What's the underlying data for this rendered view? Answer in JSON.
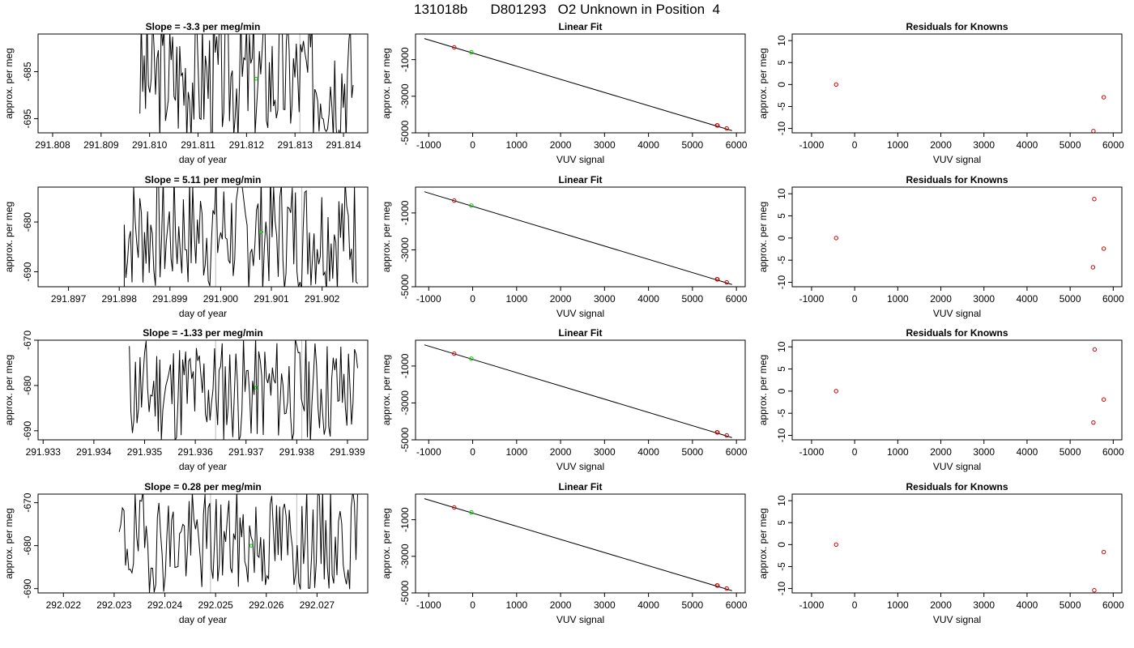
{
  "figure": {
    "title": "131018b      D801293   O2 Unknown in Position  4"
  },
  "colors": {
    "line": "#000000",
    "marker_red": "#cc0000",
    "marker_green": "#00cc00",
    "vline": "#bbbbbb"
  },
  "chart_data": [
    {
      "id": "r0_ts",
      "type": "line",
      "title": "Slope =  -3.3  per meg/min",
      "xlabel": "day of year",
      "ylabel": "approx. per meg",
      "xlim": [
        291.8077,
        291.8145
      ],
      "ylim": [
        -698,
        -677
      ],
      "xticks": [
        291.808,
        291.809,
        291.81,
        291.811,
        291.812,
        291.813,
        291.814
      ],
      "xtick_labels": [
        "291.808",
        "291.809",
        "291.810",
        "291.811",
        "291.812",
        "291.813",
        "291.814"
      ],
      "yticks": [
        -685,
        -695
      ],
      "ytick_labels": [
        "-685",
        "-695"
      ],
      "x_start": 291.8098,
      "x_end": 291.8142,
      "center": -686,
      "amp": 14,
      "seed": 3,
      "vlines": [
        291.8113,
        291.8131
      ],
      "point": {
        "x": 291.8122,
        "y": -686.5
      }
    },
    {
      "id": "r0_fit",
      "type": "scatter",
      "title": "Linear Fit",
      "xlabel": "VUV signal",
      "ylabel": "approx. per meg",
      "xlim": [
        -1300,
        6200
      ],
      "ylim": [
        -5000,
        400
      ],
      "xticks": [
        -1000,
        0,
        1000,
        2000,
        3000,
        4000,
        5000,
        6000
      ],
      "xtick_labels": [
        "-1000",
        "0",
        "1000",
        "2000",
        "3000",
        "4000",
        "5000",
        "6000"
      ],
      "yticks": [
        -1000,
        -3000,
        -5000
      ],
      "ytick_labels": [
        "-1000",
        "-3000",
        "-5000"
      ],
      "line": {
        "x": [
          -1100,
          5900
        ],
        "y": [
          150,
          -4880
        ]
      },
      "points": [
        {
          "x": -420,
          "y": -330,
          "color": "red"
        },
        {
          "x": 5560,
          "y": -4590,
          "color": "red"
        },
        {
          "x": 5570,
          "y": -4600,
          "color": "red"
        },
        {
          "x": 5780,
          "y": -4760,
          "color": "red"
        },
        {
          "x": -30,
          "y": -600,
          "color": "green"
        }
      ]
    },
    {
      "id": "r0_res",
      "type": "scatter",
      "title": "Residuals for Knowns",
      "xlabel": "VUV signal",
      "ylabel": "approx. per meg",
      "xlim": [
        -1450,
        6200
      ],
      "ylim": [
        -11,
        11.5
      ],
      "xticks": [
        -1000,
        0,
        1000,
        2000,
        3000,
        4000,
        5000,
        6000
      ],
      "xtick_labels": [
        "-1000",
        "0",
        "1000",
        "2000",
        "3000",
        "4000",
        "5000",
        "6000"
      ],
      "yticks": [
        10,
        5,
        0,
        -5,
        -10
      ],
      "ytick_labels": [
        "10",
        "5",
        "0",
        "-5",
        "-10"
      ],
      "points": [
        {
          "x": -430,
          "y": 0,
          "color": "red"
        },
        {
          "x": 5780,
          "y": -2.9,
          "color": "red"
        },
        {
          "x": 5540,
          "y": -10.6,
          "color": "red"
        }
      ]
    },
    {
      "id": "r1_ts",
      "type": "line",
      "title": "Slope =  5.11  per meg/min",
      "xlabel": "day of year",
      "ylabel": "approx. per meg",
      "xlim": [
        291.8964,
        291.9029
      ],
      "ylim": [
        -693,
        -673
      ],
      "xticks": [
        291.897,
        291.898,
        291.899,
        291.9,
        291.901,
        291.902
      ],
      "xtick_labels": [
        "291.897",
        "291.898",
        "291.899",
        "291.900",
        "291.901",
        "291.902"
      ],
      "yticks": [
        -680,
        -690
      ],
      "ytick_labels": [
        "-680",
        "-690"
      ],
      "x_start": 291.8981,
      "x_end": 291.9027,
      "center": -682,
      "amp": 12,
      "seed": 7,
      "flat_start": 291.8964,
      "flat_y": -693,
      "vlines": [
        291.8999,
        291.9016
      ],
      "point": {
        "x": 291.9008,
        "y": -682
      }
    },
    {
      "id": "r1_fit",
      "type": "scatter",
      "title": "Linear Fit",
      "xlabel": "VUV signal",
      "ylabel": "approx. per meg",
      "xlim": [
        -1300,
        6200
      ],
      "ylim": [
        -5000,
        400
      ],
      "xticks": [
        -1000,
        0,
        1000,
        2000,
        3000,
        4000,
        5000,
        6000
      ],
      "xtick_labels": [
        "-1000",
        "0",
        "1000",
        "2000",
        "3000",
        "4000",
        "5000",
        "6000"
      ],
      "yticks": [
        -1000,
        -3000,
        -5000
      ],
      "ytick_labels": [
        "-1000",
        "-3000",
        "-5000"
      ],
      "line": {
        "x": [
          -1100,
          5900
        ],
        "y": [
          150,
          -4880
        ]
      },
      "points": [
        {
          "x": -420,
          "y": -330,
          "color": "red"
        },
        {
          "x": 5560,
          "y": -4590,
          "color": "red"
        },
        {
          "x": 5570,
          "y": -4600,
          "color": "red"
        },
        {
          "x": 5780,
          "y": -4760,
          "color": "red"
        },
        {
          "x": -30,
          "y": -600,
          "color": "green"
        }
      ]
    },
    {
      "id": "r1_res",
      "type": "scatter",
      "title": "Residuals for Knowns",
      "xlabel": "VUV signal",
      "ylabel": "approx. per meg",
      "xlim": [
        -1450,
        6200
      ],
      "ylim": [
        -11,
        11.5
      ],
      "xticks": [
        -1000,
        0,
        1000,
        2000,
        3000,
        4000,
        5000,
        6000
      ],
      "xtick_labels": [
        "-1000",
        "0",
        "1000",
        "2000",
        "3000",
        "4000",
        "5000",
        "6000"
      ],
      "yticks": [
        10,
        5,
        0,
        -5,
        -10
      ],
      "ytick_labels": [
        "10",
        "5",
        "0",
        "-5",
        "-10"
      ],
      "points": [
        {
          "x": -430,
          "y": 0,
          "color": "red"
        },
        {
          "x": 5560,
          "y": 8.8,
          "color": "red"
        },
        {
          "x": 5780,
          "y": -2.4,
          "color": "red"
        },
        {
          "x": 5530,
          "y": -6.6,
          "color": "red"
        }
      ]
    },
    {
      "id": "r2_ts",
      "type": "line",
      "title": "Slope =  -1.33  per meg/min",
      "xlabel": "day of year",
      "ylabel": "approx. per meg",
      "xlim": [
        291.9329,
        291.9394
      ],
      "ylim": [
        -692,
        -670
      ],
      "xticks": [
        291.933,
        291.934,
        291.935,
        291.936,
        291.937,
        291.938,
        291.939
      ],
      "xtick_labels": [
        "291.933",
        "291.934",
        "291.935",
        "291.936",
        "291.937",
        "291.938",
        "291.939"
      ],
      "yticks": [
        -670,
        -680,
        -690
      ],
      "ytick_labels": [
        "-670",
        "-680",
        "-690"
      ],
      "x_start": 291.9347,
      "x_end": 291.9392,
      "center": -681,
      "amp": 12,
      "seed": 11,
      "vlines": [
        291.9364,
        291.9381
      ],
      "point": {
        "x": 291.9372,
        "y": -680.5
      }
    },
    {
      "id": "r2_fit",
      "type": "scatter",
      "title": "Linear Fit",
      "xlabel": "VUV signal",
      "ylabel": "approx. per meg",
      "xlim": [
        -1300,
        6200
      ],
      "ylim": [
        -5000,
        400
      ],
      "xticks": [
        -1000,
        0,
        1000,
        2000,
        3000,
        4000,
        5000,
        6000
      ],
      "xtick_labels": [
        "-1000",
        "0",
        "1000",
        "2000",
        "3000",
        "4000",
        "5000",
        "6000"
      ],
      "yticks": [
        -1000,
        -3000,
        -5000
      ],
      "ytick_labels": [
        "-1000",
        "-3000",
        "-5000"
      ],
      "line": {
        "x": [
          -1100,
          5900
        ],
        "y": [
          150,
          -4880
        ]
      },
      "points": [
        {
          "x": -420,
          "y": -330,
          "color": "red"
        },
        {
          "x": 5560,
          "y": -4590,
          "color": "red"
        },
        {
          "x": 5570,
          "y": -4600,
          "color": "red"
        },
        {
          "x": 5780,
          "y": -4760,
          "color": "red"
        },
        {
          "x": -30,
          "y": -600,
          "color": "green"
        }
      ]
    },
    {
      "id": "r2_res",
      "type": "scatter",
      "title": "Residuals for Knowns",
      "xlabel": "VUV signal",
      "ylabel": "approx. per meg",
      "xlim": [
        -1450,
        6200
      ],
      "ylim": [
        -11,
        11.5
      ],
      "xticks": [
        -1000,
        0,
        1000,
        2000,
        3000,
        4000,
        5000,
        6000
      ],
      "xtick_labels": [
        "-1000",
        "0",
        "1000",
        "2000",
        "3000",
        "4000",
        "5000",
        "6000"
      ],
      "yticks": [
        10,
        5,
        0,
        -5,
        -10
      ],
      "ytick_labels": [
        "10",
        "5",
        "0",
        "-5",
        "-10"
      ],
      "points": [
        {
          "x": -430,
          "y": 0,
          "color": "red"
        },
        {
          "x": 5570,
          "y": 9.4,
          "color": "red"
        },
        {
          "x": 5780,
          "y": -1.9,
          "color": "red"
        },
        {
          "x": 5540,
          "y": -7.1,
          "color": "red"
        }
      ]
    },
    {
      "id": "r3_ts",
      "type": "line",
      "title": "Slope =  0.28  per meg/min",
      "xlabel": "day of year",
      "ylabel": "approx. per meg",
      "xlim": [
        292.0215,
        292.028
      ],
      "ylim": [
        -691,
        -668
      ],
      "xticks": [
        292.022,
        292.023,
        292.024,
        292.025,
        292.026,
        292.027
      ],
      "xtick_labels": [
        "292.022",
        "292.023",
        "292.024",
        "292.025",
        "292.026",
        "292.027"
      ],
      "yticks": [
        -670,
        -680,
        -690
      ],
      "ytick_labels": [
        "-670",
        "-680",
        "-690"
      ],
      "x_start": 292.0231,
      "x_end": 292.0278,
      "center": -679,
      "amp": 12,
      "seed": 19,
      "vlines": [
        292.0249,
        292.0266
      ],
      "point": {
        "x": 292.0257,
        "y": -680
      }
    },
    {
      "id": "r3_fit",
      "type": "scatter",
      "title": "Linear Fit",
      "xlabel": "VUV signal",
      "ylabel": "approx. per meg",
      "xlim": [
        -1300,
        6200
      ],
      "ylim": [
        -5000,
        400
      ],
      "xticks": [
        -1000,
        0,
        1000,
        2000,
        3000,
        4000,
        5000,
        6000
      ],
      "xtick_labels": [
        "-1000",
        "0",
        "1000",
        "2000",
        "3000",
        "4000",
        "5000",
        "6000"
      ],
      "yticks": [
        -1000,
        -3000,
        -5000
      ],
      "ytick_labels": [
        "-1000",
        "-3000",
        "-5000"
      ],
      "line": {
        "x": [
          -1100,
          5900
        ],
        "y": [
          150,
          -4880
        ]
      },
      "points": [
        {
          "x": -420,
          "y": -330,
          "color": "red"
        },
        {
          "x": 5560,
          "y": -4590,
          "color": "red"
        },
        {
          "x": 5570,
          "y": -4600,
          "color": "red"
        },
        {
          "x": 5780,
          "y": -4760,
          "color": "red"
        },
        {
          "x": -30,
          "y": -600,
          "color": "green"
        }
      ]
    },
    {
      "id": "r3_res",
      "type": "scatter",
      "title": "Residuals for Knowns",
      "xlabel": "VUV signal",
      "ylabel": "approx. per meg",
      "xlim": [
        -1450,
        6200
      ],
      "ylim": [
        -11,
        11.5
      ],
      "xticks": [
        -1000,
        0,
        1000,
        2000,
        3000,
        4000,
        5000,
        6000
      ],
      "xtick_labels": [
        "-1000",
        "0",
        "1000",
        "2000",
        "3000",
        "4000",
        "5000",
        "6000"
      ],
      "yticks": [
        10,
        5,
        0,
        -5,
        -10
      ],
      "ytick_labels": [
        "10",
        "5",
        "0",
        "-5",
        "-10"
      ],
      "points": [
        {
          "x": -430,
          "y": 0,
          "color": "red"
        },
        {
          "x": 5780,
          "y": -1.7,
          "color": "red"
        },
        {
          "x": 5560,
          "y": -10.4,
          "color": "red"
        }
      ]
    }
  ]
}
